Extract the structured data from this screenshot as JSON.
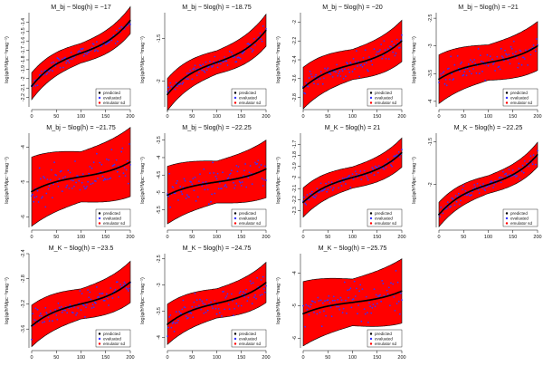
{
  "chart_data": [
    {
      "type": "scatter",
      "title": "M_bj − 5log(h) = −17",
      "ylabel": "log(φ/h³Mpc⁻³mag⁻¹)",
      "xlim": [
        0,
        200
      ],
      "ylim": [
        -2.3,
        -1.3
      ],
      "xticks": [
        0,
        50,
        100,
        150,
        200
      ],
      "yticks": [
        -1.4,
        -1.5,
        -1.6,
        -1.7,
        -1.8,
        -1.9,
        -2.0,
        -2.1,
        -2.2
      ],
      "curve": {
        "start": -2.1,
        "mid": -1.73,
        "end": -1.4,
        "slope": 0.0012
      },
      "band": 0.13,
      "scatter_sd": 0.03,
      "legend": [
        "predicted",
        "evaluated",
        "emulator sd"
      ]
    },
    {
      "type": "scatter",
      "title": "M_bj − 5log(h) = −18.75",
      "ylabel": "log(φ/h³Mpc⁻³mag⁻¹)",
      "xlim": [
        0,
        200
      ],
      "ylim": [
        -2.3,
        -1.2
      ],
      "xticks": [
        0,
        50,
        100,
        150,
        200
      ],
      "yticks": [
        -1.5,
        -2.0
      ],
      "curve": {
        "start": -2.1,
        "mid": -1.78,
        "end": -1.35,
        "slope": 0.0015
      },
      "band": 0.17,
      "scatter_sd": 0.04,
      "legend": [
        "predicted",
        "evaluated",
        "emulator sd"
      ]
    },
    {
      "type": "scatter",
      "title": "M_bj − 5log(h) = −20",
      "ylabel": "log(φ/h³Mpc⁻³mag⁻¹)",
      "xlim": [
        0,
        200
      ],
      "ylim": [
        -2.9,
        -1.9
      ],
      "xticks": [
        0,
        50,
        100,
        150,
        200
      ],
      "yticks": [
        -2.0,
        -2.2,
        -2.4,
        -2.6,
        -2.8
      ],
      "curve": {
        "start": -2.65,
        "mid": -2.45,
        "end": -2.15,
        "slope": 0.0009
      },
      "band": 0.2,
      "scatter_sd": 0.06,
      "legend": [
        "predicted",
        "evaluated",
        "emulator sd"
      ]
    },
    {
      "type": "scatter",
      "title": "M_bj − 5log(h) = −21",
      "ylabel": "log(φ/h³Mpc⁻³mag⁻¹)",
      "xlim": [
        0,
        200
      ],
      "ylim": [
        -4.1,
        -2.4
      ],
      "xticks": [
        0,
        50,
        100,
        150,
        200
      ],
      "yticks": [
        -2.5,
        -3.0,
        -3.5,
        -4.0
      ],
      "curve": {
        "start": -3.55,
        "mid": -3.3,
        "end": -2.95,
        "slope": 0.0012
      },
      "band": 0.4,
      "scatter_sd": 0.12,
      "legend": [
        "predicted",
        "evaluated",
        "emulator sd"
      ]
    },
    {
      "type": "scatter",
      "title": "M_bj − 5log(h) = −21.75",
      "ylabel": "log(φ/h³Mpc⁻³mag⁻¹)",
      "xlim": [
        0,
        200
      ],
      "ylim": [
        -6.3,
        -3.6
      ],
      "xticks": [
        0,
        50,
        100,
        150,
        200
      ],
      "yticks": [
        -4,
        -5,
        -6
      ],
      "curve": {
        "start": -5.3,
        "mid": -4.85,
        "end": -4.45,
        "slope": 0.002
      },
      "band": 0.9,
      "scatter_sd": 0.28,
      "legend": [
        "predicted",
        "evaluated",
        "emulator sd"
      ]
    },
    {
      "type": "scatter",
      "title": "M_bj − 5log(h) = −22.25",
      "ylabel": "log(φ/h³Mpc⁻³mag⁻¹)",
      "xlim": [
        0,
        200
      ],
      "ylim": [
        -6.0,
        -3.3
      ],
      "xticks": [
        0,
        50,
        100,
        150,
        200
      ],
      "yticks": [
        -3.5,
        -4.0,
        -4.5,
        -5.0,
        -5.5
      ],
      "curve": {
        "start": -5.1,
        "mid": -4.7,
        "end": -4.35,
        "slope": 0.002
      },
      "band": 0.75,
      "scatter_sd": 0.25,
      "legend": [
        "predicted",
        "evaluated",
        "emulator sd"
      ]
    },
    {
      "type": "scatter",
      "title": "M_K − 5log(h) = 21",
      "ylabel": "log(φ/h³Mpc⁻³mag⁻¹)",
      "xlim": [
        0,
        200
      ],
      "ylim": [
        -2.45,
        -1.6
      ],
      "xticks": [
        0,
        50,
        100,
        150,
        200
      ],
      "yticks": [
        -1.7,
        -1.8,
        -1.9,
        -2.0,
        -2.1,
        -2.2,
        -2.3
      ],
      "curve": {
        "start": -2.2,
        "mid": -2.0,
        "end": -1.75,
        "slope": 0.0012
      },
      "band": 0.12,
      "scatter_sd": 0.03,
      "legend": [
        "predicted",
        "evaluated",
        "emulator sd"
      ]
    },
    {
      "type": "scatter",
      "title": "M_K − 5log(h) = −22.25",
      "ylabel": "log(φ/h³Mpc⁻³mag⁻¹)",
      "xlim": [
        0,
        200
      ],
      "ylim": [
        -2.5,
        -1.4
      ],
      "xticks": [
        0,
        50,
        100,
        150,
        200
      ],
      "yticks": [
        -1.5,
        -2.0
      ],
      "curve": {
        "start": -2.3,
        "mid": -2.0,
        "end": -1.6,
        "slope": 0.0012
      },
      "band": 0.13,
      "scatter_sd": 0.04,
      "legend": [
        "predicted",
        "evaluated",
        "emulator sd"
      ]
    },
    {
      "type": "scatter",
      "title": "M_K − 5log(h) = −23.5",
      "ylabel": "log(φ/h³Mpc⁻³mag⁻¹)",
      "xlim": [
        0,
        200
      ],
      "ylim": [
        -3.9,
        -2.4
      ],
      "xticks": [
        0,
        50,
        100,
        150,
        200
      ],
      "yticks": [
        -2.4,
        -2.8,
        -3.2,
        -3.6
      ],
      "curve": {
        "start": -3.55,
        "mid": -3.2,
        "end": -2.85,
        "slope": 0.0015
      },
      "band": 0.3,
      "scatter_sd": 0.09,
      "legend": [
        "predicted",
        "evaluated",
        "emulator sd"
      ]
    },
    {
      "type": "scatter",
      "title": "M_K − 5log(h) = −24.75",
      "ylabel": "log(φ/h³Mpc⁻³mag⁻¹)",
      "xlim": [
        0,
        200
      ],
      "ylim": [
        -4.2,
        -2.4
      ],
      "xticks": [
        0,
        50,
        100,
        150,
        200
      ],
      "yticks": [
        -2.5,
        -3.0,
        -3.5,
        -4.0
      ],
      "curve": {
        "start": -3.75,
        "mid": -3.35,
        "end": -2.95,
        "slope": 0.0018
      },
      "band": 0.35,
      "scatter_sd": 0.12,
      "legend": [
        "predicted",
        "evaluated",
        "emulator sd"
      ]
    },
    {
      "type": "scatter",
      "title": "M_K − 5log(h) = −25.75",
      "ylabel": "log(φ/h³Mpc⁻³mag⁻¹)",
      "xlim": [
        0,
        200
      ],
      "ylim": [
        -6.3,
        -3.4
      ],
      "xticks": [
        0,
        50,
        100,
        150,
        200
      ],
      "yticks": [
        -4.0,
        -5.0,
        -6.0
      ],
      "curve": {
        "start": -5.2,
        "mid": -4.9,
        "end": -4.5,
        "slope": 0.0015
      },
      "band": 0.9,
      "scatter_sd": 0.3,
      "legend": [
        "predicted",
        "evaluated",
        "emulator sd"
      ]
    }
  ],
  "colors": {
    "band": "#ff0000",
    "predicted": "#000000",
    "evaluated": "#3333ff",
    "band_edge": "#000000"
  }
}
